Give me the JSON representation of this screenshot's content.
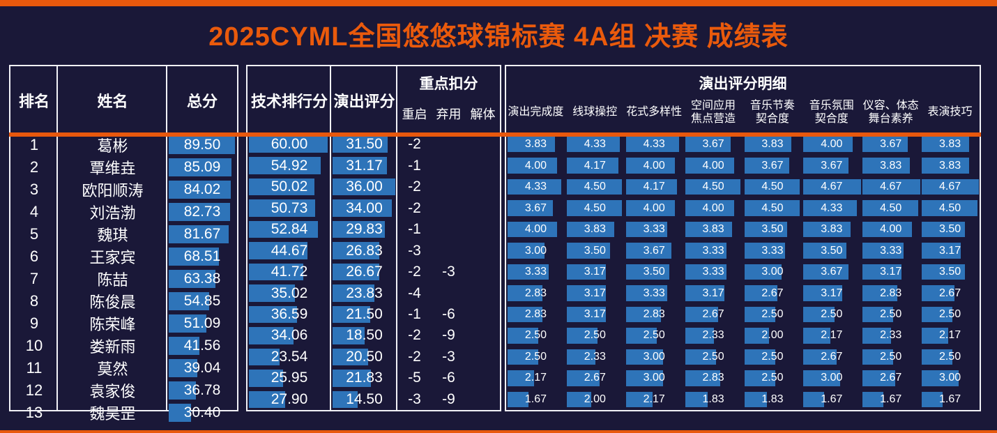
{
  "title": "2025CYML全国悠悠球锦标赛 4A组 决赛 成绩表",
  "colors": {
    "background": "#1a1838",
    "bar_blue": "#2e74b9",
    "accent_orange": "#e8580d",
    "border_white": "#f2f2f7",
    "text_white": "#ffffff"
  },
  "headers": {
    "rank": "排名",
    "name": "姓名",
    "total": "总分",
    "tech": "技术排行分",
    "perf": "演出评分",
    "deduction_group": "重点扣分",
    "deduction_cols": [
      "重启",
      "弃用",
      "解体"
    ],
    "detail_group": "演出评分明细",
    "detail_cols": [
      "演出完成度",
      "线球操控",
      "花式多样性",
      "空间应用\n焦点营造",
      "音乐节奏\n契合度",
      "音乐氛围\n契合度",
      "仪容、体态\n舞台素养",
      "表演技巧"
    ]
  },
  "bar_scales": {
    "total": 94.5,
    "tech": 64,
    "perf": 38,
    "detail": 4.8
  },
  "chart_data": {
    "type": "table",
    "title": "2025CYML全国悠悠球锦标赛 4A组 决赛 成绩表",
    "columns": [
      "排名",
      "姓名",
      "总分",
      "技术排行分",
      "演出评分",
      "重启",
      "弃用",
      "解体",
      "演出完成度",
      "线球操控",
      "花式多样性",
      "空间应用焦点营造",
      "音乐节奏契合度",
      "音乐氛围契合度",
      "仪容、体态舞台素养",
      "表演技巧"
    ],
    "rows": [
      [
        "1",
        "葛彬",
        "89.50",
        "60.00",
        "31.50",
        "-2",
        "",
        "",
        "3.83",
        "4.33",
        "4.33",
        "3.67",
        "3.83",
        "4.00",
        "3.67",
        "3.83"
      ],
      [
        "2",
        "覃维垚",
        "85.09",
        "54.92",
        "31.17",
        "-1",
        "",
        "",
        "4.00",
        "4.17",
        "4.00",
        "4.00",
        "3.67",
        "3.67",
        "3.83",
        "3.83"
      ],
      [
        "3",
        "欧阳顺涛",
        "84.02",
        "50.02",
        "36.00",
        "-2",
        "",
        "",
        "4.33",
        "4.50",
        "4.17",
        "4.50",
        "4.50",
        "4.67",
        "4.67",
        "4.67"
      ],
      [
        "4",
        "刘浩渤",
        "82.73",
        "50.73",
        "34.00",
        "-2",
        "",
        "",
        "3.67",
        "4.50",
        "4.00",
        "4.00",
        "4.50",
        "4.33",
        "4.50",
        "4.50"
      ],
      [
        "5",
        "魏琪",
        "81.67",
        "52.84",
        "29.83",
        "-1",
        "",
        "",
        "4.00",
        "3.83",
        "3.33",
        "3.83",
        "3.50",
        "3.83",
        "4.00",
        "3.50"
      ],
      [
        "6",
        "王家宾",
        "68.51",
        "44.67",
        "26.83",
        "-3",
        "",
        "",
        "3.00",
        "3.50",
        "3.67",
        "3.33",
        "3.33",
        "3.50",
        "3.33",
        "3.17"
      ],
      [
        "7",
        "陈喆",
        "63.38",
        "41.72",
        "26.67",
        "-2",
        "-3",
        "",
        "3.33",
        "3.17",
        "3.50",
        "3.33",
        "3.00",
        "3.67",
        "3.17",
        "3.50"
      ],
      [
        "8",
        "陈俊晨",
        "54.85",
        "35.02",
        "23.83",
        "-4",
        "",
        "",
        "2.83",
        "3.17",
        "3.33",
        "3.17",
        "2.67",
        "3.17",
        "2.83",
        "2.67"
      ],
      [
        "9",
        "陈荣峰",
        "51.09",
        "36.59",
        "21.50",
        "-1",
        "-6",
        "",
        "2.83",
        "3.17",
        "2.83",
        "2.67",
        "2.50",
        "2.50",
        "2.50",
        "2.50"
      ],
      [
        "10",
        "娄新雨",
        "41.56",
        "34.06",
        "18.50",
        "-2",
        "-9",
        "",
        "2.50",
        "2.50",
        "2.50",
        "2.33",
        "2.00",
        "2.17",
        "2.33",
        "2.17"
      ],
      [
        "11",
        "莫然",
        "39.04",
        "23.54",
        "20.50",
        "-2",
        "-3",
        "",
        "2.50",
        "2.33",
        "3.00",
        "2.50",
        "2.50",
        "2.67",
        "2.50",
        "2.50"
      ],
      [
        "12",
        "袁家俊",
        "36.78",
        "25.95",
        "21.83",
        "-5",
        "-6",
        "",
        "2.17",
        "2.67",
        "3.00",
        "2.83",
        "2.50",
        "3.00",
        "2.67",
        "3.00"
      ],
      [
        "13",
        "魏昊罡",
        "30.40",
        "27.90",
        "14.50",
        "-3",
        "-9",
        "",
        "1.67",
        "2.00",
        "2.17",
        "1.83",
        "1.83",
        "1.67",
        "1.67",
        "1.67"
      ]
    ]
  }
}
